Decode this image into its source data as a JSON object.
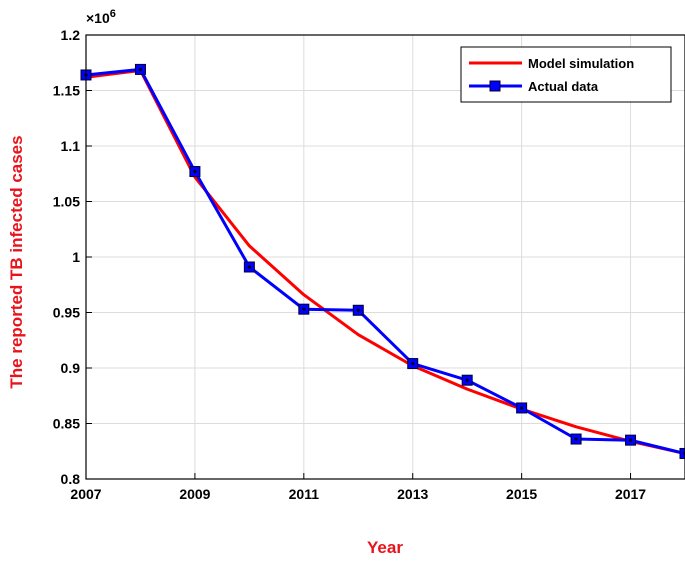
{
  "chart_data": {
    "type": "line",
    "xlabel": "Year",
    "ylabel": "The reported TB infected cases",
    "y_exponent_label": "×10",
    "y_exponent_power": "6",
    "xlim": [
      2007,
      2018
    ],
    "ylim": [
      0.8,
      1.2
    ],
    "x_ticks": [
      2007,
      2009,
      2011,
      2013,
      2015,
      2017
    ],
    "x_tick_labels": [
      "2007",
      "2009",
      "2011",
      "2013",
      "2015",
      "2017"
    ],
    "y_ticks": [
      0.8,
      0.85,
      0.9,
      0.95,
      1.0,
      1.05,
      1.1,
      1.15,
      1.2
    ],
    "y_tick_labels": [
      "0.8",
      "0.85",
      "0.9",
      "0.95",
      "1",
      "1.05",
      "1.1",
      "1.15",
      "1.2"
    ],
    "grid": true,
    "legend_position": "top-right",
    "series": [
      {
        "name": "Model simulation",
        "color": "#ff0000",
        "marker": "none",
        "x": [
          2007,
          2008,
          2009,
          2010,
          2011,
          2012,
          2013,
          2014,
          2015,
          2016,
          2017,
          2018
        ],
        "values": [
          1.162,
          1.168,
          1.072,
          1.01,
          0.966,
          0.93,
          0.902,
          0.881,
          0.863,
          0.847,
          0.834,
          0.823
        ]
      },
      {
        "name": "Actual data",
        "color": "#0000ff",
        "marker": "square",
        "x": [
          2007,
          2008,
          2009,
          2010,
          2011,
          2012,
          2013,
          2014,
          2015,
          2016,
          2017,
          2018
        ],
        "values": [
          1.164,
          1.169,
          1.077,
          0.991,
          0.953,
          0.952,
          0.904,
          0.889,
          0.864,
          0.836,
          0.835,
          0.823
        ]
      }
    ]
  }
}
